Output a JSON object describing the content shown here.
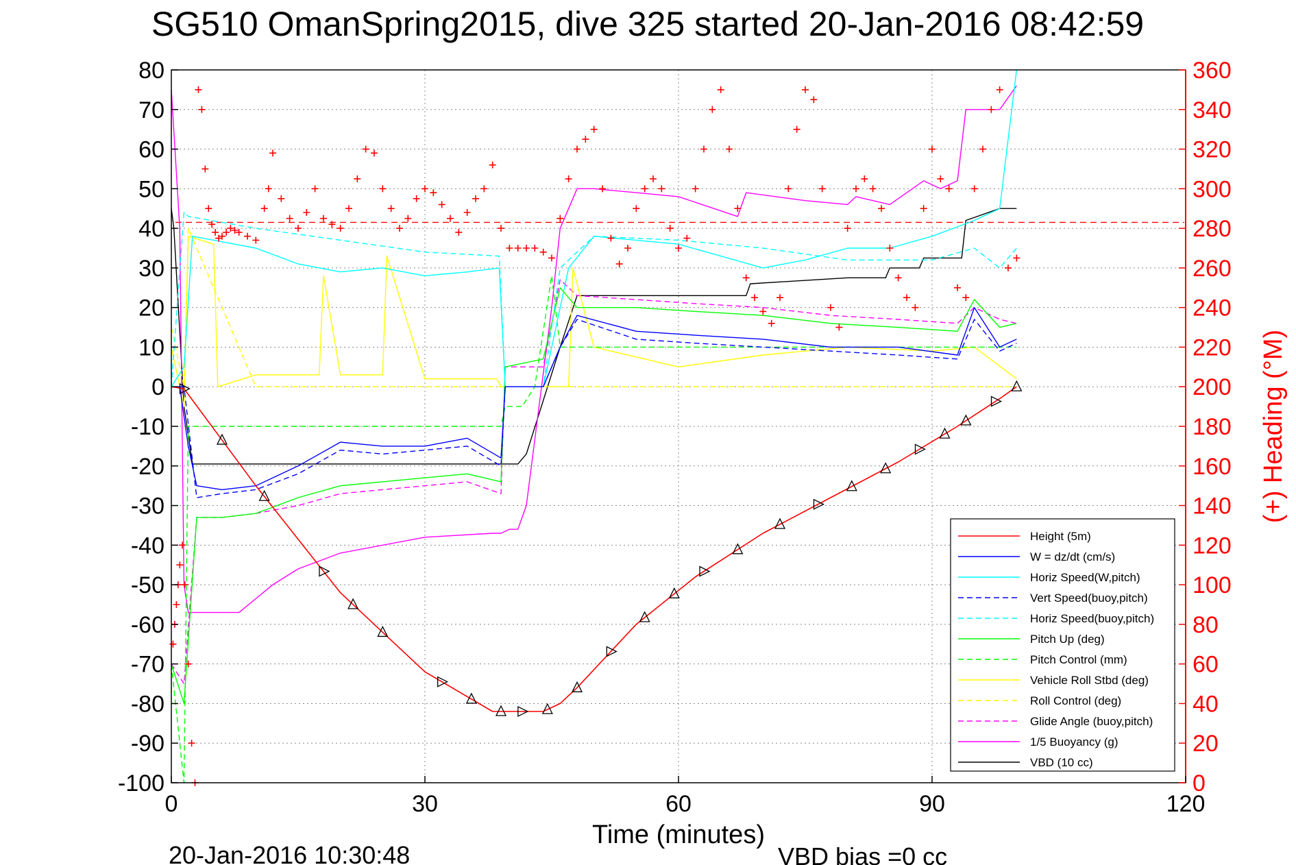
{
  "chart_data": {
    "type": "line",
    "title": "SG510 OmanSpring2015, dive 325 started 20-Jan-2016 08:42:59",
    "xlabel": "Time (minutes)",
    "ylabel_right": "(+) Heading (°M)",
    "xlim": [
      0,
      120
    ],
    "ylim": [
      -100,
      80
    ],
    "ylim_right": [
      0,
      360
    ],
    "x_ticks": [
      "0",
      "30",
      "60",
      "90",
      "120"
    ],
    "y_ticks": [
      "80",
      "70",
      "60",
      "50",
      "40",
      "30",
      "20",
      "10",
      "0",
      "-10",
      "-20",
      "-30",
      "-40",
      "-50",
      "-60",
      "-70",
      "-80",
      "-90",
      "-100"
    ],
    "y_ticks_right": [
      "360",
      "340",
      "320",
      "300",
      "280",
      "260",
      "240",
      "220",
      "200",
      "180",
      "160",
      "140",
      "120",
      "100",
      "80",
      "60",
      "40",
      "20",
      "0"
    ],
    "grid": true,
    "legend_position": "bottom-right",
    "footer_left": "20-Jan-2016 10:30:48",
    "footer_right": "VBD bias =0 cc",
    "reference_heading_deg": 283,
    "series": [
      {
        "name": "Height (5m)",
        "color": "#ff0000",
        "style": "solid",
        "x": [
          0,
          1.5,
          10,
          20,
          30,
          38,
          41,
          44,
          46,
          48,
          55,
          62,
          70,
          78,
          86,
          93,
          98,
          100
        ],
        "y": [
          0,
          -0.5,
          -25,
          -52,
          -72,
          -82,
          -82,
          -82,
          -80,
          -76,
          -60,
          -48,
          -37,
          -28,
          -19,
          -10,
          -3,
          0
        ]
      },
      {
        "name": "W = dz/dt (cm/s)",
        "color": "#0000ff",
        "style": "solid",
        "x": [
          0,
          1,
          2,
          3,
          6,
          10,
          15,
          20,
          25,
          30,
          35,
          39,
          39.5,
          44,
          46,
          48,
          55,
          62,
          70,
          78,
          86,
          93,
          95,
          98,
          100
        ],
        "y": [
          0,
          0,
          -15,
          -25,
          -26,
          -25,
          -20,
          -14,
          -15,
          -15,
          -13,
          -18,
          0,
          0,
          10,
          18,
          14,
          13,
          12,
          10,
          10,
          8,
          20,
          10,
          12
        ]
      },
      {
        "name": "Horiz Speed(W,pitch)",
        "color": "#00ffff",
        "style": "solid",
        "x": [
          0,
          1.5,
          2.5,
          5,
          10,
          15,
          20,
          25,
          30,
          35,
          38.8,
          39.5,
          44,
          47,
          50,
          55,
          60,
          65,
          70,
          75,
          80,
          85,
          90,
          95,
          98,
          100
        ],
        "y": [
          0,
          5,
          38,
          37,
          35,
          31,
          29,
          30,
          28,
          29,
          30,
          0,
          0,
          30,
          38,
          37,
          36,
          33,
          30,
          32,
          35,
          35,
          38,
          42,
          45,
          80
        ]
      },
      {
        "name": "Vert Speed(buoy,pitch)",
        "color": "#0000ff",
        "style": "dashed",
        "x": [
          0,
          1.5,
          3,
          6,
          10,
          15,
          20,
          25,
          30,
          35,
          39,
          39.5,
          44,
          46,
          48,
          55,
          62,
          70,
          78,
          86,
          93,
          95,
          98,
          100
        ],
        "y": [
          0,
          0,
          -28,
          -27,
          -26,
          -22,
          -16,
          -17,
          -16,
          -15,
          -20,
          0,
          0,
          10,
          17,
          12,
          11,
          10,
          9,
          8,
          7,
          17,
          9,
          11
        ]
      },
      {
        "name": "Horiz Speed(buoy,pitch)",
        "color": "#00ffff",
        "style": "dashed",
        "x": [
          0,
          1.5,
          2,
          10,
          20,
          30,
          38.8,
          39.5,
          44,
          46,
          50,
          60,
          70,
          80,
          90,
          95,
          98,
          100
        ],
        "y": [
          0,
          44,
          43,
          40,
          37,
          34,
          33,
          0,
          0,
          30,
          38,
          37,
          35,
          32,
          32,
          35,
          30,
          35
        ]
      },
      {
        "name": "Pitch Up (deg)",
        "color": "#00ff00",
        "style": "solid",
        "x": [
          0,
          1.5,
          3,
          6,
          10,
          15,
          20,
          25,
          30,
          35,
          39,
          39.5,
          44,
          46,
          48,
          55,
          62,
          70,
          78,
          86,
          93,
          95,
          98,
          100
        ],
        "y": [
          -70,
          -80,
          -33,
          -33,
          -32,
          -28,
          -25,
          -24,
          -23,
          -22,
          -24,
          5,
          7,
          25,
          20,
          20,
          19,
          18,
          16,
          15,
          14,
          22,
          15,
          16
        ]
      },
      {
        "name": "Pitch Control (mm)",
        "color": "#00ff00",
        "style": "dashed",
        "x": [
          0,
          1.5,
          2,
          39,
          39.5,
          41.5,
          43,
          45,
          46,
          100
        ],
        "y": [
          -70,
          -100,
          -10,
          -10,
          -5,
          -5,
          0,
          28,
          10,
          10
        ]
      },
      {
        "name": "Vehicle Roll Stbd (deg)",
        "color": "#ffff00",
        "style": "solid",
        "x": [
          0,
          1.5,
          2,
          5,
          5.5,
          10,
          17.5,
          18,
          20,
          25,
          25.5,
          30,
          38.5,
          39,
          44,
          47,
          47.5,
          50,
          60,
          70,
          80,
          90,
          95,
          100
        ],
        "y": [
          10,
          -5,
          38,
          36,
          0,
          3,
          3,
          28,
          3,
          3,
          33,
          2,
          2,
          0,
          0,
          0,
          30,
          10,
          5,
          8,
          10,
          9,
          10,
          2
        ]
      },
      {
        "name": "Roll Control (deg)",
        "color": "#ffff00",
        "style": "dashed",
        "x": [
          0,
          1.5,
          2,
          10,
          20,
          30,
          38.5,
          39,
          44,
          46,
          60,
          80,
          100
        ],
        "y": [
          15,
          0,
          40,
          0,
          0,
          0,
          0,
          0,
          0,
          0,
          0,
          0,
          0
        ]
      },
      {
        "name": "Glide Angle (buoy,pitch)",
        "color": "#ff00ff",
        "style": "dashed",
        "x": [
          0,
          1.5,
          3,
          6,
          10,
          15,
          20,
          25,
          30,
          35,
          39,
          39.5,
          44,
          46,
          48,
          55,
          62,
          70,
          78,
          86,
          93,
          95,
          98,
          100
        ],
        "y": [
          -70,
          -75,
          -33,
          -33,
          -32,
          -30,
          -27,
          -26,
          -25,
          -24,
          -27,
          5,
          5,
          27,
          23,
          22,
          21,
          20,
          18,
          17,
          16,
          20,
          17,
          16
        ]
      },
      {
        "name": "1/5 Buoyancy (g)",
        "color": "#ff00ff",
        "style": "solid",
        "x": [
          0,
          1,
          1.5,
          2,
          4,
          8,
          12,
          15,
          20,
          30,
          38,
          39,
          40,
          41,
          42,
          45,
          46,
          47,
          48,
          50,
          55,
          60,
          67,
          68,
          75,
          80,
          81,
          85,
          89,
          91,
          93,
          94,
          98,
          100
        ],
        "y": [
          75,
          40,
          -50,
          -57,
          -57,
          -57,
          -50,
          -46,
          -42,
          -38,
          -37,
          -37,
          -36,
          -36,
          -30,
          20,
          40,
          45,
          50,
          50,
          49,
          48,
          43,
          49,
          47,
          46,
          48,
          46,
          52,
          50,
          52,
          70,
          70,
          76
        ]
      },
      {
        "name": "VBD (10 cc)",
        "color": "#000000",
        "style": "solid",
        "x": [
          0,
          0.3,
          1.5,
          2.5,
          41,
          42,
          46,
          48,
          68,
          68.5,
          80,
          84.5,
          85,
          88.5,
          89,
          93.5,
          94,
          98,
          100
        ],
        "y": [
          45,
          40,
          -5,
          -19.5,
          -19.5,
          -17,
          10,
          23,
          23,
          26,
          27.5,
          27.5,
          30,
          30,
          32.5,
          32.5,
          42,
          45,
          45
        ]
      }
    ],
    "heading_series": {
      "name": "(+) Heading",
      "color": "#ff0000",
      "marker": "+",
      "axis": "right",
      "x": [
        0.2,
        0.4,
        0.6,
        0.8,
        1.0,
        1.3,
        1.6,
        2.0,
        2.4,
        2.8,
        3.2,
        3.6,
        4.0,
        4.4,
        4.8,
        5.2,
        5.6,
        6.0,
        6.5,
        7.0,
        7.5,
        8,
        9,
        10,
        11,
        11.5,
        12,
        13,
        14,
        15,
        16,
        17,
        18,
        19,
        20,
        21,
        22,
        23,
        24,
        25,
        26,
        27,
        28,
        29,
        30,
        31,
        32,
        33,
        34,
        35,
        36,
        37,
        38,
        39,
        40,
        41,
        42,
        43,
        44,
        45,
        46,
        47,
        48,
        49,
        50,
        51,
        52,
        53,
        54,
        55,
        56,
        57,
        58,
        59,
        60,
        61,
        62,
        63,
        64,
        65,
        66,
        67,
        68,
        69,
        70,
        71,
        72,
        73,
        74,
        75,
        76,
        77,
        78,
        79,
        80,
        81,
        82,
        83,
        84,
        85,
        86,
        87,
        88,
        89,
        90,
        91,
        92,
        93,
        94,
        95,
        96,
        97,
        98,
        99,
        100
      ],
      "y": [
        70,
        80,
        90,
        100,
        110,
        120,
        100,
        60,
        20,
        0,
        350,
        340,
        310,
        290,
        282,
        278,
        275,
        276,
        278,
        280,
        279,
        278,
        276,
        274,
        290,
        300,
        318,
        295,
        285,
        280,
        288,
        300,
        285,
        282,
        280,
        290,
        305,
        320,
        318,
        300,
        290,
        280,
        285,
        295,
        300,
        298,
        292,
        285,
        278,
        288,
        295,
        300,
        312,
        280,
        270,
        270,
        270,
        270,
        268,
        265,
        285,
        305,
        320,
        325,
        330,
        300,
        275,
        262,
        270,
        290,
        300,
        305,
        300,
        280,
        270,
        275,
        300,
        320,
        340,
        350,
        320,
        290,
        255,
        245,
        238,
        232,
        245,
        300,
        330,
        350,
        345,
        300,
        240,
        230,
        280,
        300,
        305,
        300,
        290,
        270,
        255,
        245,
        240,
        290,
        320,
        305,
        300,
        250,
        245,
        300,
        320,
        340,
        350,
        260,
        265
      ]
    }
  }
}
